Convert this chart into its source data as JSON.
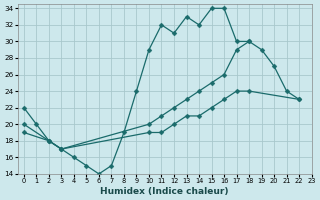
{
  "xlabel": "Humidex (Indice chaleur)",
  "ylabel": "",
  "background_color": "#cde8ec",
  "grid_color": "#a8c8cc",
  "line_color": "#1a6b6b",
  "xlim": [
    -0.5,
    23
  ],
  "ylim": [
    14,
    34.5
  ],
  "xticks": [
    0,
    1,
    2,
    3,
    4,
    5,
    6,
    7,
    8,
    9,
    10,
    11,
    12,
    13,
    14,
    15,
    16,
    17,
    18,
    19,
    20,
    21,
    22,
    23
  ],
  "yticks": [
    14,
    16,
    18,
    20,
    22,
    24,
    26,
    28,
    30,
    32,
    34
  ],
  "series": [
    {
      "x": [
        0,
        1,
        2,
        3,
        4,
        5,
        6,
        7,
        8,
        9,
        10,
        11,
        12,
        13,
        14,
        15,
        16,
        17,
        18,
        19,
        20,
        21,
        22,
        23
      ],
      "y": [
        22,
        20,
        18,
        17,
        16,
        15,
        14,
        15,
        19,
        24,
        29,
        32,
        31,
        33,
        32,
        34,
        34,
        30,
        30,
        null,
        null,
        null,
        null,
        null
      ]
    },
    {
      "x": [
        0,
        1,
        2,
        3,
        4,
        5,
        6,
        7,
        8,
        9,
        10,
        11,
        12,
        13,
        14,
        15,
        16,
        17,
        18,
        19,
        20,
        21,
        22,
        23
      ],
      "y": [
        20,
        null,
        18,
        17,
        null,
        null,
        null,
        null,
        null,
        null,
        20,
        21,
        22,
        23,
        24,
        25,
        26,
        29,
        30,
        29,
        27,
        24,
        23,
        null
      ]
    },
    {
      "x": [
        0,
        1,
        2,
        3,
        4,
        5,
        6,
        7,
        8,
        9,
        10,
        11,
        12,
        13,
        14,
        15,
        16,
        17,
        18,
        19,
        20,
        21,
        22,
        23
      ],
      "y": [
        19,
        null,
        18,
        17,
        null,
        null,
        null,
        null,
        null,
        null,
        19,
        19,
        20,
        21,
        21,
        22,
        23,
        24,
        24,
        null,
        null,
        null,
        23,
        null
      ]
    }
  ]
}
